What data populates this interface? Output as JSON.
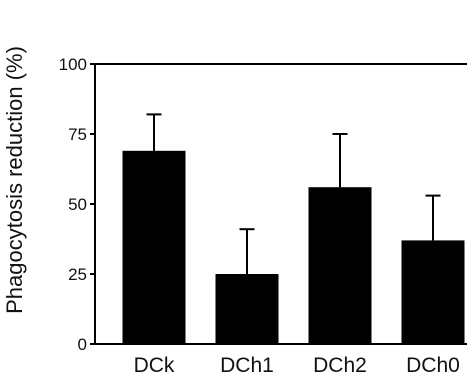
{
  "chart_data": {
    "type": "bar",
    "title": "",
    "xlabel": "",
    "ylabel": "Phagocytosis reduction (%)",
    "categories": [
      "DCk",
      "DCh1",
      "DCh2",
      "DCh0"
    ],
    "values": [
      69,
      25,
      56,
      37
    ],
    "error_upper": [
      82,
      41,
      75,
      53
    ],
    "ylim": [
      0,
      100
    ],
    "yticks": [
      "0",
      "25",
      "50",
      "75",
      "100"
    ],
    "grid": false,
    "legend": "none",
    "colors": {
      "bar": "#000000",
      "axis": "#000000",
      "text": "#111111"
    }
  }
}
